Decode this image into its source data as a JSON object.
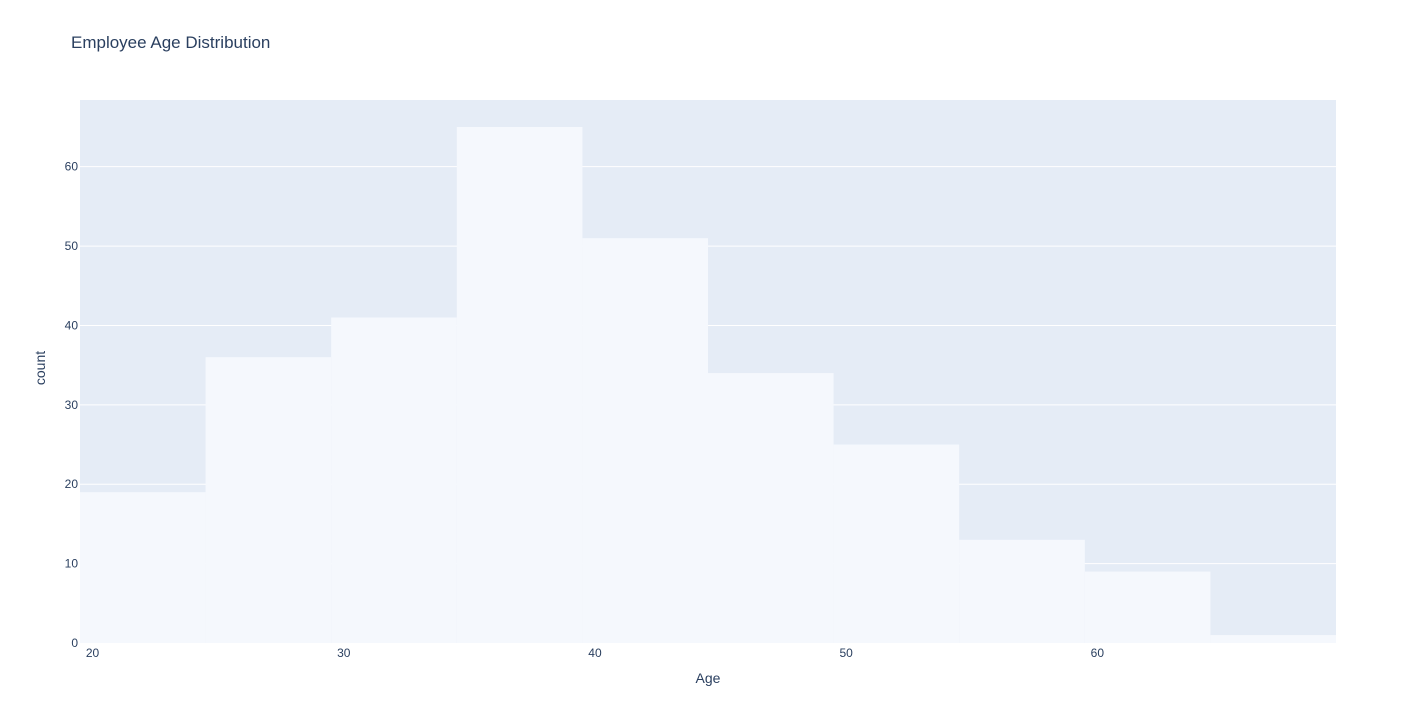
{
  "chart_data": {
    "type": "bar",
    "title": "Employee Age Distribution",
    "xlabel": "Age",
    "ylabel": "count",
    "bin_edges": [
      19.5,
      24.5,
      29.5,
      34.5,
      39.5,
      44.5,
      49.5,
      54.5,
      59.5,
      64.5,
      69.5
    ],
    "values": [
      19,
      36,
      41,
      65,
      51,
      34,
      25,
      13,
      9,
      1
    ],
    "x_ticks": [
      20,
      30,
      40,
      50,
      60
    ],
    "y_ticks": [
      0,
      10,
      20,
      30,
      40,
      50,
      60
    ],
    "xlim": [
      19.5,
      69.5
    ],
    "ylim": [
      0,
      68.4
    ],
    "grid": true,
    "colors": {
      "plot_background": "#e5ecf6",
      "bar_fill": "#f5f8fd",
      "grid": "#ffffff",
      "text": "#2a3f5f"
    }
  }
}
